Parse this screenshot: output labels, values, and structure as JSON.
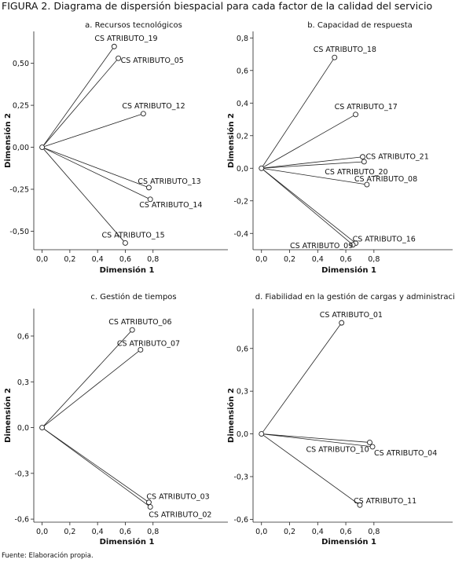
{
  "figure_title": "FIGURA 2. Diagrama de dispersión biespacial para cada factor de la calidad del servicio",
  "source": "Fuente: Elaboración propia.",
  "chart_data": [
    {
      "type": "scatter",
      "title": "a. Recursos tecnológicos",
      "xlabel": "Dimensión 1",
      "ylabel": "Dimensión 2",
      "xticks": [
        "0,0",
        "0,2",
        "0,4",
        "0,6",
        "0,8"
      ],
      "yticks": [
        "0,50",
        "0,25",
        "0,00",
        "-0,25",
        "-0,50"
      ],
      "points": [
        {
          "label": "CS ATRIBUTO_19",
          "x": 0.52,
          "y": 0.6
        },
        {
          "label": "CS ATRIBUTO_05",
          "x": 0.55,
          "y": 0.53
        },
        {
          "label": "CS ATRIBUTO_12",
          "x": 0.73,
          "y": 0.2
        },
        {
          "label": "CS ATRIBUTO_13",
          "x": 0.77,
          "y": -0.24
        },
        {
          "label": "CS ATRIBUTO_14",
          "x": 0.78,
          "y": -0.31
        },
        {
          "label": "CS ATRIBUTO_15",
          "x": 0.6,
          "y": -0.57
        }
      ]
    },
    {
      "type": "scatter",
      "title": "b. Capacidad de respuesta",
      "xlabel": "Dimensión 1",
      "ylabel": "Dimensión 2",
      "xticks": [
        "0,0",
        "0,2",
        "0,4",
        "0,6",
        "0,8"
      ],
      "yticks": [
        "0,8",
        "0,6",
        "0,4",
        "0,2",
        "0,0",
        "-0,2",
        "-0,4"
      ],
      "points": [
        {
          "label": "CS ATRIBUTO_18",
          "x": 0.52,
          "y": 0.68
        },
        {
          "label": "CS ATRIBUTO_17",
          "x": 0.67,
          "y": 0.33
        },
        {
          "label": "CS ATRIBUTO_21",
          "x": 0.72,
          "y": 0.07
        },
        {
          "label": "CS ATRIBUTO_20",
          "x": 0.73,
          "y": 0.04
        },
        {
          "label": "CS ATRIBUTO_08",
          "x": 0.75,
          "y": -0.1
        },
        {
          "label": "CS ATRIBUTO_16",
          "x": 0.67,
          "y": -0.46
        },
        {
          "label": "CS ATRIBUTO_09",
          "x": 0.65,
          "y": -0.47
        }
      ]
    },
    {
      "type": "scatter",
      "title": "c. Gestión de tiempos",
      "xlabel": "Dimensión 1",
      "ylabel": "Dimensión 2",
      "xticks": [
        "0,0",
        "0,2",
        "0,4",
        "0,6",
        "0,8"
      ],
      "yticks": [
        "0,6",
        "0,3",
        "0,0",
        "-0,3",
        "-0,6"
      ],
      "points": [
        {
          "label": "CS ATRIBUTO_06",
          "x": 0.65,
          "y": 0.64
        },
        {
          "label": "CS ATRIBUTO_07",
          "x": 0.71,
          "y": 0.51
        },
        {
          "label": "CS ATRIBUTO_03",
          "x": 0.77,
          "y": -0.49
        },
        {
          "label": "CS ATRIBUTO_02",
          "x": 0.78,
          "y": -0.52
        }
      ]
    },
    {
      "type": "scatter",
      "title": "d. Fiabilidad en la gestión de cargas y administración",
      "xlabel": "Dimensión 1",
      "ylabel": "Dimensión 2",
      "xticks": [
        "0,0",
        "0,2",
        "0,4",
        "0,6",
        "0,8"
      ],
      "yticks": [
        "0,6",
        "0,3",
        "0,0",
        "-0,3",
        "-0,6"
      ],
      "points": [
        {
          "label": "CS ATRIBUTO_01",
          "x": 0.57,
          "y": 0.78
        },
        {
          "label": "CS ATRIBUTO_10",
          "x": 0.77,
          "y": -0.06
        },
        {
          "label": "CS ATRIBUTO_04",
          "x": 0.79,
          "y": -0.09
        },
        {
          "label": "CS ATRIBUTO_11",
          "x": 0.7,
          "y": -0.5
        }
      ]
    }
  ]
}
